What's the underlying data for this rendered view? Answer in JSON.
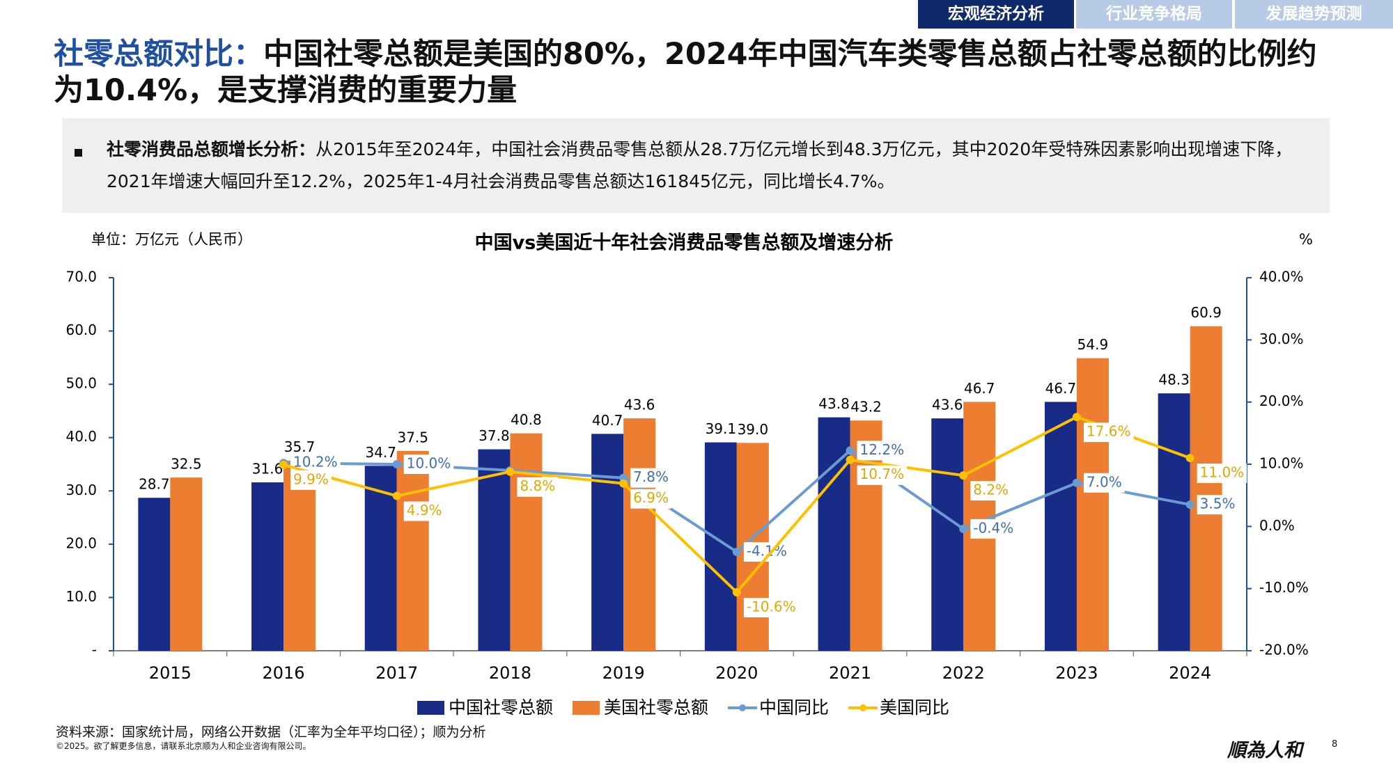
{
  "header": {
    "tabs": [
      "宏观经济分析",
      "行业竞争格局",
      "发展趋势预测"
    ]
  },
  "title_highlight": "社零总额对比：",
  "title": "中国社零总额是美国的80%，2024年中国汽车类零售总额占社零总额的比例约为10.4%，是支撑消费的重要力量",
  "bullet": {
    "lead": "社零消费品总额增长分析：",
    "text": "从2015年至2024年，中国社会消费品零售总额从28.7万亿元增长到48.3万亿元，其中2020年受特殊因素影响出现增速下降，2021年增速大幅回升至12.2%，2025年1-4月社会消费品零售总额达161845亿元，同比增长4.7%。"
  },
  "chart_data": {
    "type": "bar-line",
    "title": "中国vs美国近十年社会消费品零售总额及增速分析",
    "y_label": "单位：万亿元（人民币）",
    "y2_label": "%",
    "categories": [
      "2015",
      "2016",
      "2017",
      "2018",
      "2019",
      "2020",
      "2021",
      "2022",
      "2023",
      "2024"
    ],
    "series": [
      {
        "name": "中国社零总额",
        "type": "bar",
        "color": "#172b87",
        "values": [
          28.7,
          31.6,
          34.7,
          37.8,
          40.7,
          39.1,
          43.8,
          43.6,
          46.7,
          48.3
        ],
        "value_labels": [
          "28.7",
          "31.6",
          "34.7",
          "37.8",
          "40.7",
          "39.1",
          "43.8",
          "43.6",
          "46.7",
          "48.3"
        ]
      },
      {
        "name": "美国社零总额",
        "type": "bar",
        "color": "#ed7d31",
        "values": [
          32.5,
          35.7,
          37.5,
          40.8,
          43.6,
          39.0,
          43.2,
          46.7,
          54.9,
          60.9
        ],
        "value_labels": [
          "32.5",
          "35.7",
          "37.5",
          "40.8",
          "43.6",
          "39.0",
          "43.2",
          "46.7",
          "54.9",
          "60.9"
        ]
      },
      {
        "name": "中国同比",
        "type": "line",
        "axis": "y2",
        "color": "#6a9bd1",
        "values": [
          null,
          10.2,
          10.0,
          9.0,
          7.8,
          -4.1,
          12.2,
          -0.4,
          7.0,
          3.5
        ],
        "value_labels": [
          null,
          "10.2%",
          "10.0%",
          null,
          "7.8%",
          "-4.1%",
          "12.2%",
          "-0.4%",
          "7.0%",
          "3.5%"
        ]
      },
      {
        "name": "美国同比",
        "type": "line",
        "axis": "y2",
        "color": "#ffc000",
        "values": [
          null,
          9.9,
          4.9,
          8.8,
          6.9,
          -10.6,
          10.7,
          8.2,
          17.6,
          11.0
        ],
        "value_labels": [
          null,
          "9.9%",
          "4.9%",
          "8.8%",
          "6.9%",
          "-10.6%",
          "10.7%",
          "8.2%",
          "17.6%",
          "11.0%"
        ]
      }
    ],
    "ylim": [
      0,
      70
    ],
    "yticks": [
      {
        "value": 0,
        "label": "-"
      },
      {
        "value": 10,
        "label": "10.0"
      },
      {
        "value": 20,
        "label": "20.0"
      },
      {
        "value": 30,
        "label": "30.0"
      },
      {
        "value": 40,
        "label": "40.0"
      },
      {
        "value": 50,
        "label": "50.0"
      },
      {
        "value": 60,
        "label": "60.0"
      },
      {
        "value": 70,
        "label": "70.0"
      }
    ],
    "y2lim": [
      -20,
      40
    ],
    "y2ticks": [
      {
        "value": -20,
        "label": "-20.0%"
      },
      {
        "value": -10,
        "label": "-10.0%"
      },
      {
        "value": 0,
        "label": "0.0%"
      },
      {
        "value": 10,
        "label": "10.0%"
      },
      {
        "value": 20,
        "label": "20.0%"
      },
      {
        "value": 30,
        "label": "30.0%"
      },
      {
        "value": 40,
        "label": "40.0%"
      }
    ]
  },
  "source": "资料来源：国家统计局，网络公开数据（汇率为全年平均口径）；顺为分析",
  "copyright": "©2025。欲了解更多信息，请联系北京顺为人和企业咨询有限公司。",
  "logo": "順為人和",
  "page_number": "8"
}
